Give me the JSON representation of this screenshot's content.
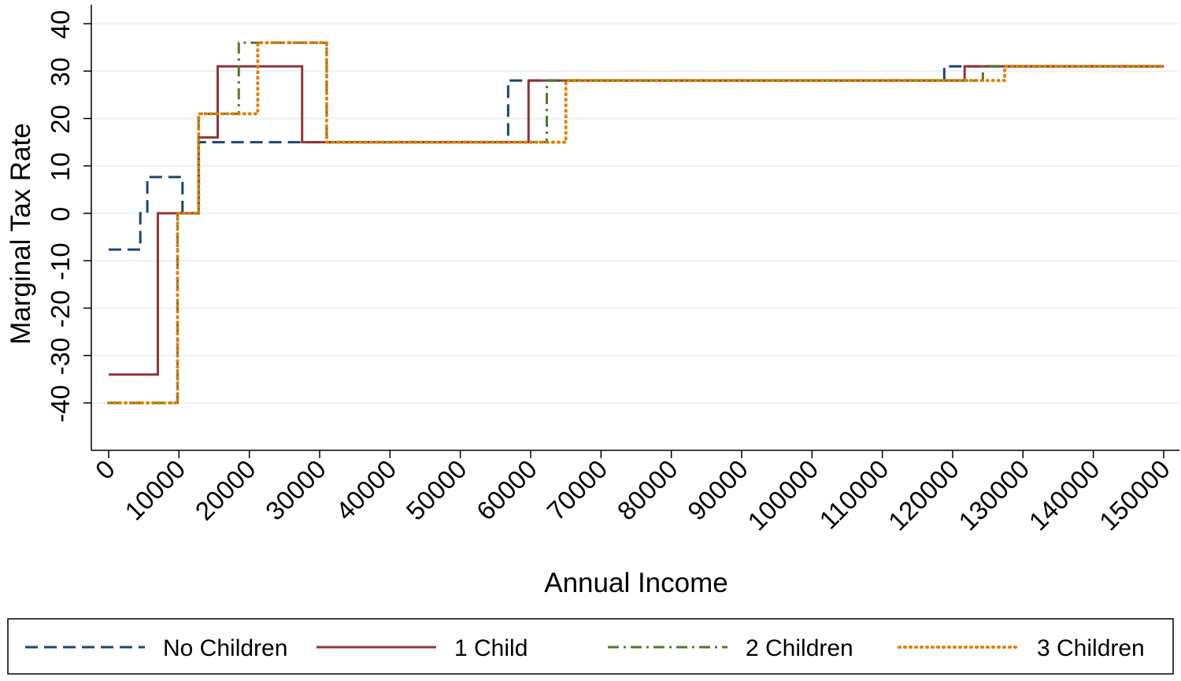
{
  "chart_data": {
    "type": "line",
    "step": true,
    "xlabel": "Annual Income",
    "ylabel": "Marginal Tax Rate",
    "xlim": [
      0,
      150000
    ],
    "ylim": [
      -50,
      44
    ],
    "xticks": [
      0,
      10000,
      20000,
      30000,
      40000,
      50000,
      60000,
      70000,
      80000,
      90000,
      100000,
      110000,
      120000,
      130000,
      140000,
      150000
    ],
    "yticks": [
      -40,
      -30,
      -20,
      -10,
      0,
      10,
      20,
      30,
      40
    ],
    "grid": true,
    "legend_position": "bottom",
    "series": [
      {
        "name": "No Children",
        "color": "#1a476f",
        "dash": "dashed",
        "points": [
          [
            0,
            -7.65
          ],
          [
            4500,
            -7.65
          ],
          [
            4500,
            0
          ],
          [
            5500,
            0
          ],
          [
            5500,
            7.65
          ],
          [
            10500,
            7.65
          ],
          [
            10500,
            0
          ],
          [
            12800,
            0
          ],
          [
            12800,
            15
          ],
          [
            56800,
            15
          ],
          [
            56800,
            28
          ],
          [
            118800,
            28
          ],
          [
            118800,
            31
          ],
          [
            150000,
            31
          ]
        ]
      },
      {
        "name": "1 Child",
        "color": "#90353b",
        "dash": "solid",
        "points": [
          [
            0,
            -34
          ],
          [
            7000,
            -34
          ],
          [
            7000,
            0
          ],
          [
            12800,
            0
          ],
          [
            12800,
            16
          ],
          [
            15500,
            16
          ],
          [
            15500,
            31
          ],
          [
            27500,
            31
          ],
          [
            27500,
            15
          ],
          [
            59700,
            15
          ],
          [
            59700,
            28
          ],
          [
            121700,
            28
          ],
          [
            121700,
            31
          ],
          [
            150000,
            31
          ]
        ]
      },
      {
        "name": "2 Children",
        "color": "#55752f",
        "dash": "dashdot",
        "points": [
          [
            0,
            -40
          ],
          [
            9800,
            -40
          ],
          [
            9800,
            0
          ],
          [
            12800,
            0
          ],
          [
            12800,
            21
          ],
          [
            18500,
            21
          ],
          [
            18500,
            36
          ],
          [
            31000,
            36
          ],
          [
            31000,
            15
          ],
          [
            62300,
            15
          ],
          [
            62300,
            28
          ],
          [
            124300,
            28
          ],
          [
            124300,
            31
          ],
          [
            150000,
            31
          ]
        ]
      },
      {
        "name": "3 Children",
        "color": "#e37e00",
        "dash": "dotted",
        "points": [
          [
            0,
            -40
          ],
          [
            9800,
            -40
          ],
          [
            9800,
            0
          ],
          [
            12800,
            0
          ],
          [
            12800,
            21
          ],
          [
            21200,
            21
          ],
          [
            21200,
            36
          ],
          [
            31000,
            36
          ],
          [
            31000,
            15
          ],
          [
            65000,
            15
          ],
          [
            65000,
            28
          ],
          [
            127400,
            28
          ],
          [
            127400,
            31
          ],
          [
            150000,
            31
          ]
        ]
      }
    ]
  }
}
